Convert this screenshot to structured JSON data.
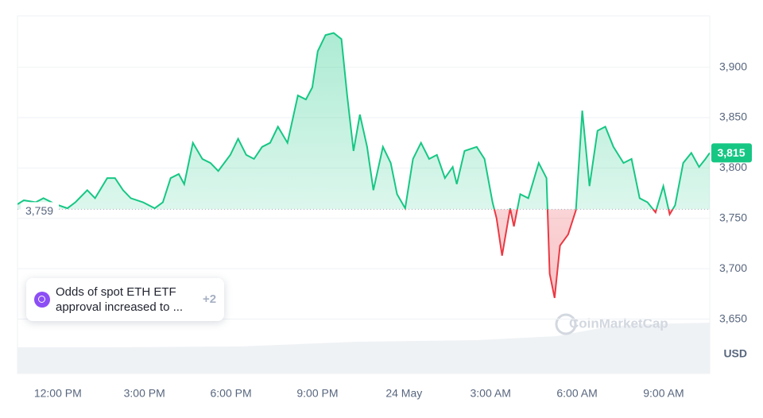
{
  "chart_data": {
    "type": "line",
    "x": [
      10.6,
      10.82,
      11.23,
      11.5,
      11.92,
      12.33,
      12.61,
      13.02,
      13.29,
      13.71,
      13.98,
      14.26,
      14.53,
      14.95,
      15.36,
      15.64,
      15.91,
      16.19,
      16.38,
      16.68,
      17.01,
      17.29,
      17.56,
      17.98,
      18.25,
      18.53,
      18.8,
      19.08,
      19.36,
      19.63,
      19.96,
      20.32,
      20.6,
      20.82,
      21.01,
      21.28,
      21.56,
      21.83,
      22.03,
      22.25,
      22.47,
      22.72,
      22.94,
      23.27,
      23.54,
      23.76,
      24.04,
      24.31,
      24.59,
      24.87,
      25.14,
      25.42,
      25.69,
      25.83,
      26.1,
      26.52,
      26.79,
      27.07,
      27.21,
      27.4,
      27.68,
      27.81,
      28.03,
      28.31,
      28.67,
      28.94,
      29.05,
      29.22,
      29.41,
      29.69,
      29.96,
      30.18,
      30.43,
      30.71,
      30.98,
      31.26,
      31.61,
      31.89,
      32.17,
      32.44,
      32.72,
      32.99,
      33.21,
      33.4,
      33.68,
      33.96,
      34.23,
      34.45,
      34.6
    ],
    "values": [
      3764,
      3768,
      3766,
      3770,
      3764,
      3760,
      3766,
      3778,
      3770,
      3790,
      3790,
      3778,
      3770,
      3766,
      3760,
      3766,
      3790,
      3794,
      3784,
      3825,
      3809,
      3805,
      3797,
      3813,
      3829,
      3813,
      3809,
      3821,
      3825,
      3841,
      3825,
      3872,
      3868,
      3880,
      3916,
      3932,
      3934,
      3928,
      3872,
      3817,
      3853,
      3821,
      3778,
      3821,
      3805,
      3774,
      3760,
      3809,
      3825,
      3809,
      3813,
      3790,
      3801,
      3784,
      3817,
      3821,
      3809,
      3766,
      3750,
      3713,
      3760,
      3742,
      3774,
      3770,
      3805,
      3790,
      3695,
      3671,
      3723,
      3734,
      3758,
      3857,
      3782,
      3837,
      3841,
      3821,
      3805,
      3809,
      3770,
      3766,
      3756,
      3782,
      3754,
      3763,
      3805,
      3815,
      3801,
      3809,
      3815
    ],
    "color": "#16c784",
    "down_color": "#ea3943",
    "baseline": {
      "value": 3759,
      "label": "3,759"
    },
    "last_price": {
      "value": 3815,
      "label": "3,815"
    },
    "xlim": [
      10.6,
      34.6
    ],
    "ylim": [
      3596,
      3951
    ],
    "xticks": [
      {
        "value": 12,
        "label": "12:00 PM"
      },
      {
        "value": 15,
        "label": "3:00 PM"
      },
      {
        "value": 18,
        "label": "6:00 PM"
      },
      {
        "value": 21,
        "label": "9:00 PM"
      },
      {
        "value": 24,
        "label": "24 May"
      },
      {
        "value": 27,
        "label": "3:00 AM"
      },
      {
        "value": 30,
        "label": "6:00 AM"
      },
      {
        "value": 33,
        "label": "9:00 AM"
      }
    ],
    "yticks": [
      {
        "value": 3650,
        "label": "3,650"
      },
      {
        "value": 3700,
        "label": "3,700"
      },
      {
        "value": 3750,
        "label": "3,750"
      },
      {
        "value": 3800,
        "label": "3,800"
      },
      {
        "value": 3850,
        "label": "3,850"
      },
      {
        "value": 3900,
        "label": "3,900"
      }
    ],
    "currency": "USD",
    "watermark": "CoinMarketCap",
    "news": {
      "text": "Odds of spot ETH ETF approval increased to ...",
      "more": "+2"
    },
    "grid": true
  }
}
